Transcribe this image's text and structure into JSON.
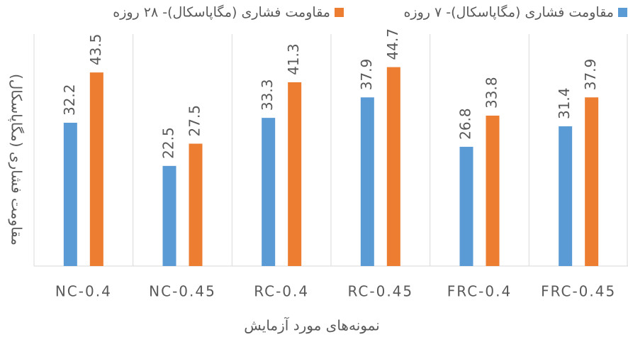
{
  "chart_data": {
    "type": "bar",
    "categories": [
      "NC-0.4",
      "NC-0.45",
      "RC-0.4",
      "RC-0.45",
      "FRC-0.4",
      "FRC-0.45"
    ],
    "series": [
      {
        "name": "مقاومت فشاری (مگاپاسکال)- ۷ روزه",
        "color": "#5b9bd5",
        "values": [
          32.2,
          22.5,
          33.3,
          37.9,
          26.8,
          31.4
        ]
      },
      {
        "name": "مقاومت فشاری (مگاپاسکال)- ۲۸ روزه",
        "color": "#ed7d31",
        "values": [
          43.5,
          27.5,
          41.3,
          44.7,
          33.8,
          37.9
        ]
      }
    ],
    "x_label": "نمونه‌های مورد آزمایش",
    "y_label": "مقاومت فشاری (مگاپاسکال)",
    "ylim": [
      0,
      55
    ],
    "legend": "top"
  }
}
